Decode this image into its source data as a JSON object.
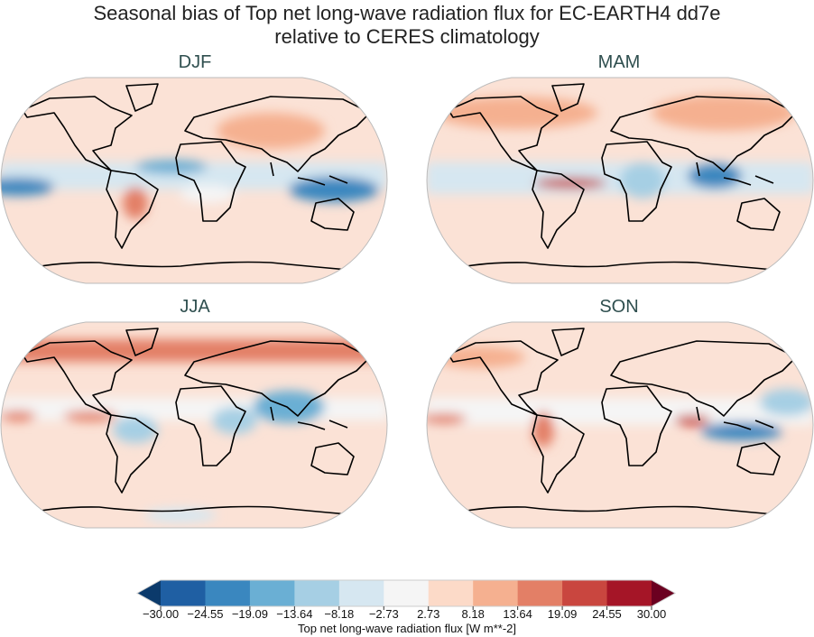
{
  "title": {
    "line1": "Seasonal bias of Top net long-wave radiation flux for EC-EARTH4 dd7e",
    "line2": "relative to CERES climatology"
  },
  "panels": [
    {
      "label": "DJF"
    },
    {
      "label": "MAM"
    },
    {
      "label": "JJA"
    },
    {
      "label": "SON"
    }
  ],
  "colorbar": {
    "label": "Top net long-wave radiation flux [W m**-2]",
    "ticks": [
      "−30.00",
      "−24.55",
      "−19.09",
      "−13.64",
      "−8.18",
      "−2.73",
      "2.73",
      "8.18",
      "13.64",
      "19.09",
      "24.55",
      "30.00"
    ],
    "colors": [
      "#1f5fa3",
      "#3a87bf",
      "#6aafd4",
      "#a6cfe4",
      "#d6e7f1",
      "#f5f5f5",
      "#fcdac8",
      "#f5b090",
      "#e37f66",
      "#c9463f",
      "#a51527"
    ],
    "under_color": "#0b3a6b",
    "over_color": "#6b0020",
    "extend": "both"
  }
}
